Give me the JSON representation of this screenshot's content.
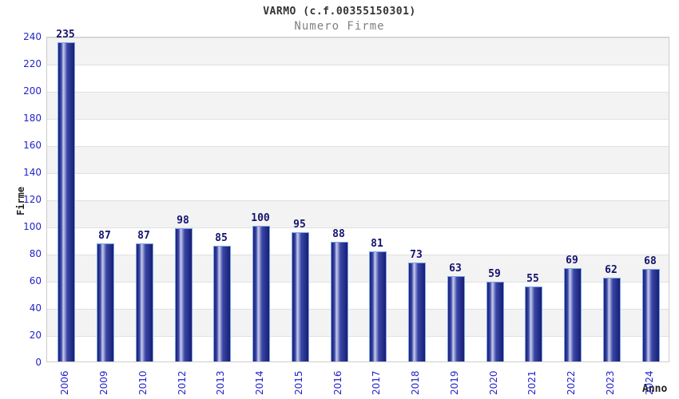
{
  "header": {
    "title": "VARMO (c.f.00355150301)",
    "subtitle": "Numero Firme"
  },
  "chart_data": {
    "type": "bar",
    "title": "VARMO (c.f.00355150301)",
    "subtitle": "Numero Firme",
    "categories": [
      "2006",
      "2009",
      "2010",
      "2012",
      "2013",
      "2014",
      "2015",
      "2016",
      "2017",
      "2018",
      "2019",
      "2020",
      "2021",
      "2022",
      "2023",
      "2024"
    ],
    "values": [
      235,
      87,
      87,
      98,
      85,
      100,
      95,
      88,
      81,
      73,
      63,
      59,
      55,
      69,
      62,
      68
    ],
    "xlabel": "Anno",
    "ylabel": "Firme",
    "ylim": [
      0,
      240
    ],
    "ytick_step": 20,
    "grid": "horizontal-bands",
    "legend_position": "none",
    "value_labels_shown": true
  },
  "colors": {
    "title_text": "#333333",
    "subtitle_text": "#808080",
    "tick_label": "#2323cc",
    "value_label": "#13136f",
    "axis_title": "#222222",
    "plot_border": "#cccccc",
    "band_gray": "#f3f3f3",
    "band_white": "#ffffff",
    "gridline": "#e0e0e0",
    "bar_border": "#7aa6e8",
    "bar_edge_dark": "#171e74",
    "bar_mid": "#3a47a6",
    "bar_highlight": "#c9cdec"
  }
}
